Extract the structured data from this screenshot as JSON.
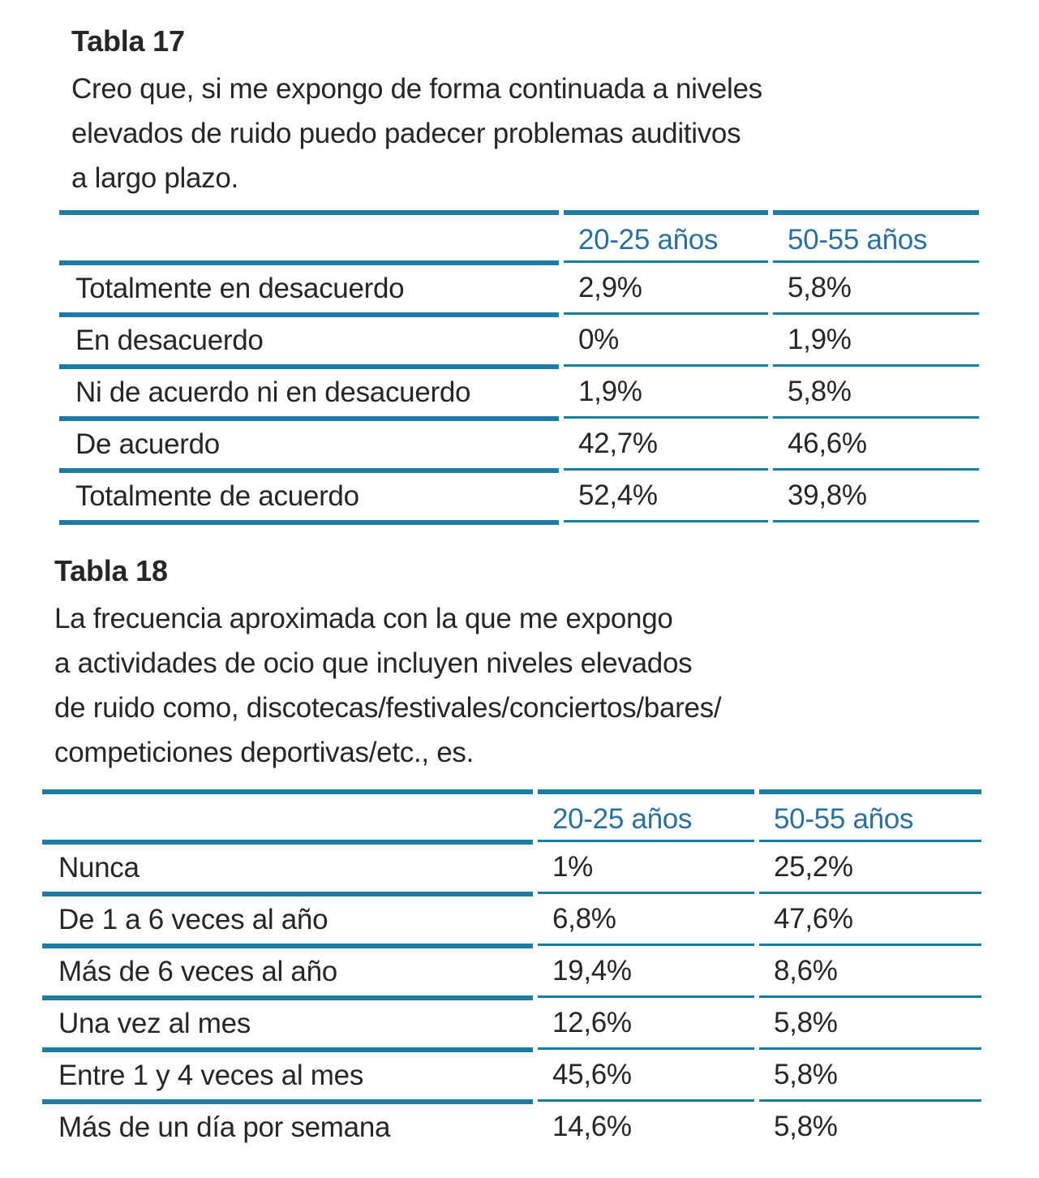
{
  "colors": {
    "rule_blue": "#1F7AA6",
    "header_text_blue": "#2B6F9E",
    "body_text": "#262626"
  },
  "tables": [
    {
      "title": "Tabla 17",
      "description_lines": [
        "Creo que, si me expongo de forma continuada a niveles",
        "elevados de ruido puedo padecer problemas auditivos",
        "a largo plazo."
      ],
      "columns": [
        "20-25 años",
        "50-55 años"
      ],
      "rows": [
        {
          "label": "Totalmente en desacuerdo",
          "v1": "2,9%",
          "v2": "5,8%"
        },
        {
          "label": "En desacuerdo",
          "v1": "0%",
          "v2": "1,9%"
        },
        {
          "label": "Ni de acuerdo ni en desacuerdo",
          "v1": "1,9%",
          "v2": "5,8%"
        },
        {
          "label": "De acuerdo",
          "v1": "42,7%",
          "v2": "46,6%"
        },
        {
          "label": "Totalmente de acuerdo",
          "v1": "52,4%",
          "v2": "39,8%"
        }
      ]
    },
    {
      "title": "Tabla 18",
      "description_lines": [
        "La frecuencia aproximada con la que me expongo",
        "a actividades de ocio que incluyen niveles elevados",
        "de ruido como, discotecas/festivales/conciertos/bares/",
        "competiciones deportivas/etc., es."
      ],
      "columns": [
        "20-25 años",
        "50-55 años"
      ],
      "rows": [
        {
          "label": "Nunca",
          "v1": "1%",
          "v2": "25,2%"
        },
        {
          "label": "De 1 a 6 veces al año",
          "v1": "6,8%",
          "v2": "47,6%"
        },
        {
          "label": "Más de 6 veces al año",
          "v1": "19,4%",
          "v2": "8,6%"
        },
        {
          "label": "Una vez al mes",
          "v1": "12,6%",
          "v2": "5,8%"
        },
        {
          "label": "Entre 1 y 4 veces al mes",
          "v1": "45,6%",
          "v2": "5,8%"
        },
        {
          "label": "Más de un día por semana",
          "v1": "14,6%",
          "v2": "5,8%"
        }
      ]
    }
  ]
}
